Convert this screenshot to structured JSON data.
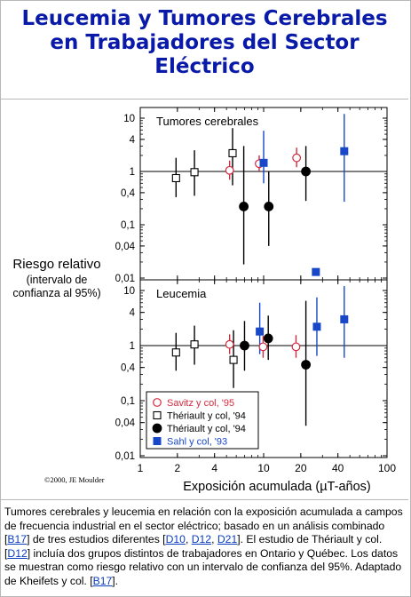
{
  "title": {
    "line1": "Leucemia y Tumores Cerebrales",
    "line2": "en Trabajadores del Sector",
    "line3": "Eléctrico"
  },
  "colors": {
    "title": "#0a1aa8",
    "savitz": "#d42a3c",
    "theriault_open": "#000000",
    "theriault_filled": "#000000",
    "sahl": "#1848c8",
    "link": "#0a3cc0"
  },
  "chart_data": {
    "type": "scatter",
    "x_scale": "log",
    "y_scale": "log",
    "xlabel": "Exposición acumulada (µT-años)",
    "ylabel_lines": [
      "Riesgo relativo",
      "(intervalo de",
      "confianza al 95%)"
    ],
    "xlim": [
      1,
      100
    ],
    "ylim": [
      0.01,
      10
    ],
    "x_ticks": [
      1,
      2,
      4,
      10,
      20,
      40,
      100
    ],
    "x_tick_labels": [
      "1",
      "2",
      "4",
      "10",
      "20",
      "40",
      "100"
    ],
    "y_ticks": [
      0.01,
      0.04,
      0.1,
      0.4,
      1,
      4,
      10
    ],
    "y_tick_labels": [
      "0,01",
      "0,04",
      "0,1",
      "0,4",
      "1",
      "4",
      "10"
    ],
    "reference_line": 1,
    "legend": {
      "placement": "bottom-left",
      "entries": [
        {
          "series": "savitz",
          "label": "Savitz y col, '95"
        },
        {
          "series": "theriault_open",
          "label": "Thériault y col, '94"
        },
        {
          "series": "theriault_filled",
          "label": "Thériault y col, '94"
        },
        {
          "series": "sahl",
          "label": "Sahl y col, '93"
        }
      ]
    },
    "series_style": {
      "savitz": {
        "marker": "circle-open"
      },
      "theriault_open": {
        "marker": "square-open"
      },
      "theriault_filled": {
        "marker": "circle-filled"
      },
      "sahl": {
        "marker": "square-filled"
      }
    },
    "panels": [
      {
        "label": "Tumores cerebrales",
        "series": {
          "savitz": [
            {
              "x": 5.3,
              "y": 1.05,
              "lo": 0.7,
              "hi": 1.6
            },
            {
              "x": 9.2,
              "y": 1.4,
              "lo": 1.0,
              "hi": 2.0
            },
            {
              "x": 18.5,
              "y": 1.8,
              "lo": 1.2,
              "hi": 2.8
            }
          ],
          "theriault_open": [
            {
              "x": 1.95,
              "y": 0.75,
              "lo": 0.33,
              "hi": 1.8
            },
            {
              "x": 2.75,
              "y": 0.97,
              "lo": 0.35,
              "hi": 2.5
            },
            {
              "x": 5.6,
              "y": 2.2,
              "lo": 0.55,
              "hi": 6.5
            }
          ],
          "theriault_filled": [
            {
              "x": 6.9,
              "y": 0.22,
              "lo": 0.018,
              "hi": 3.0
            },
            {
              "x": 11.0,
              "y": 0.22,
              "lo": 0.04,
              "hi": 1.0
            },
            {
              "x": 22.0,
              "y": 1.0,
              "lo": 0.28,
              "hi": 3.0
            }
          ],
          "sahl": [
            {
              "x": 10.0,
              "y": 1.45,
              "lo": 0.6,
              "hi": 5.8
            },
            {
              "x": 26.5,
              "y": 0.013,
              "lo": null,
              "hi": null
            },
            {
              "x": 45.0,
              "y": 2.4,
              "lo": 0.27,
              "hi": 12.0
            }
          ]
        }
      },
      {
        "label": "Leucemia",
        "series": {
          "savitz": [
            {
              "x": 5.3,
              "y": 1.05,
              "lo": 0.7,
              "hi": 1.6
            },
            {
              "x": 9.9,
              "y": 0.95,
              "lo": 0.6,
              "hi": 1.5
            },
            {
              "x": 18.3,
              "y": 0.95,
              "lo": 0.6,
              "hi": 1.55
            }
          ],
          "theriault_open": [
            {
              "x": 1.95,
              "y": 0.75,
              "lo": 0.35,
              "hi": 1.7
            },
            {
              "x": 2.75,
              "y": 1.05,
              "lo": 0.45,
              "hi": 2.3
            },
            {
              "x": 5.7,
              "y": 0.55,
              "lo": 0.17,
              "hi": 1.9
            }
          ],
          "theriault_filled": [
            {
              "x": 7.0,
              "y": 1.0,
              "lo": 0.35,
              "hi": 2.8
            },
            {
              "x": 10.9,
              "y": 1.35,
              "lo": 0.55,
              "hi": 3.5
            },
            {
              "x": 22.0,
              "y": 0.45,
              "lo": 0.035,
              "hi": 6.5
            }
          ],
          "sahl": [
            {
              "x": 9.3,
              "y": 1.8,
              "lo": 0.7,
              "hi": 6.0
            },
            {
              "x": 27.0,
              "y": 2.2,
              "lo": 0.65,
              "hi": 7.5
            },
            {
              "x": 45.0,
              "y": 3.0,
              "lo": 0.6,
              "hi": 12.0
            }
          ]
        }
      }
    ],
    "annotation": "©2000, JE Moulder"
  },
  "caption": {
    "t1": "Tumores cerebrales y leucemia en relación con la exposición acumulada a campos de frecuencia industrial en el sector eléctrico; basado en un análisis combinado [",
    "link_b17": "B17",
    "t2": "] de tres estudios diferentes [",
    "link_d10": "D10",
    "sep1": ", ",
    "link_d12": "D12",
    "sep2": ", ",
    "link_d21": "D21",
    "t3": "]. El estudio de Thériault y col. [",
    "link_d12b": "D12",
    "t4": "] incluía dos grupos distintos de trabajadores en Ontario y Québec. Los datos se muestran como riesgo relativo con un intervalo de confianza del 95%. Adaptado de Kheifets y col. [",
    "link_b17b": "B17",
    "t5": "]."
  }
}
